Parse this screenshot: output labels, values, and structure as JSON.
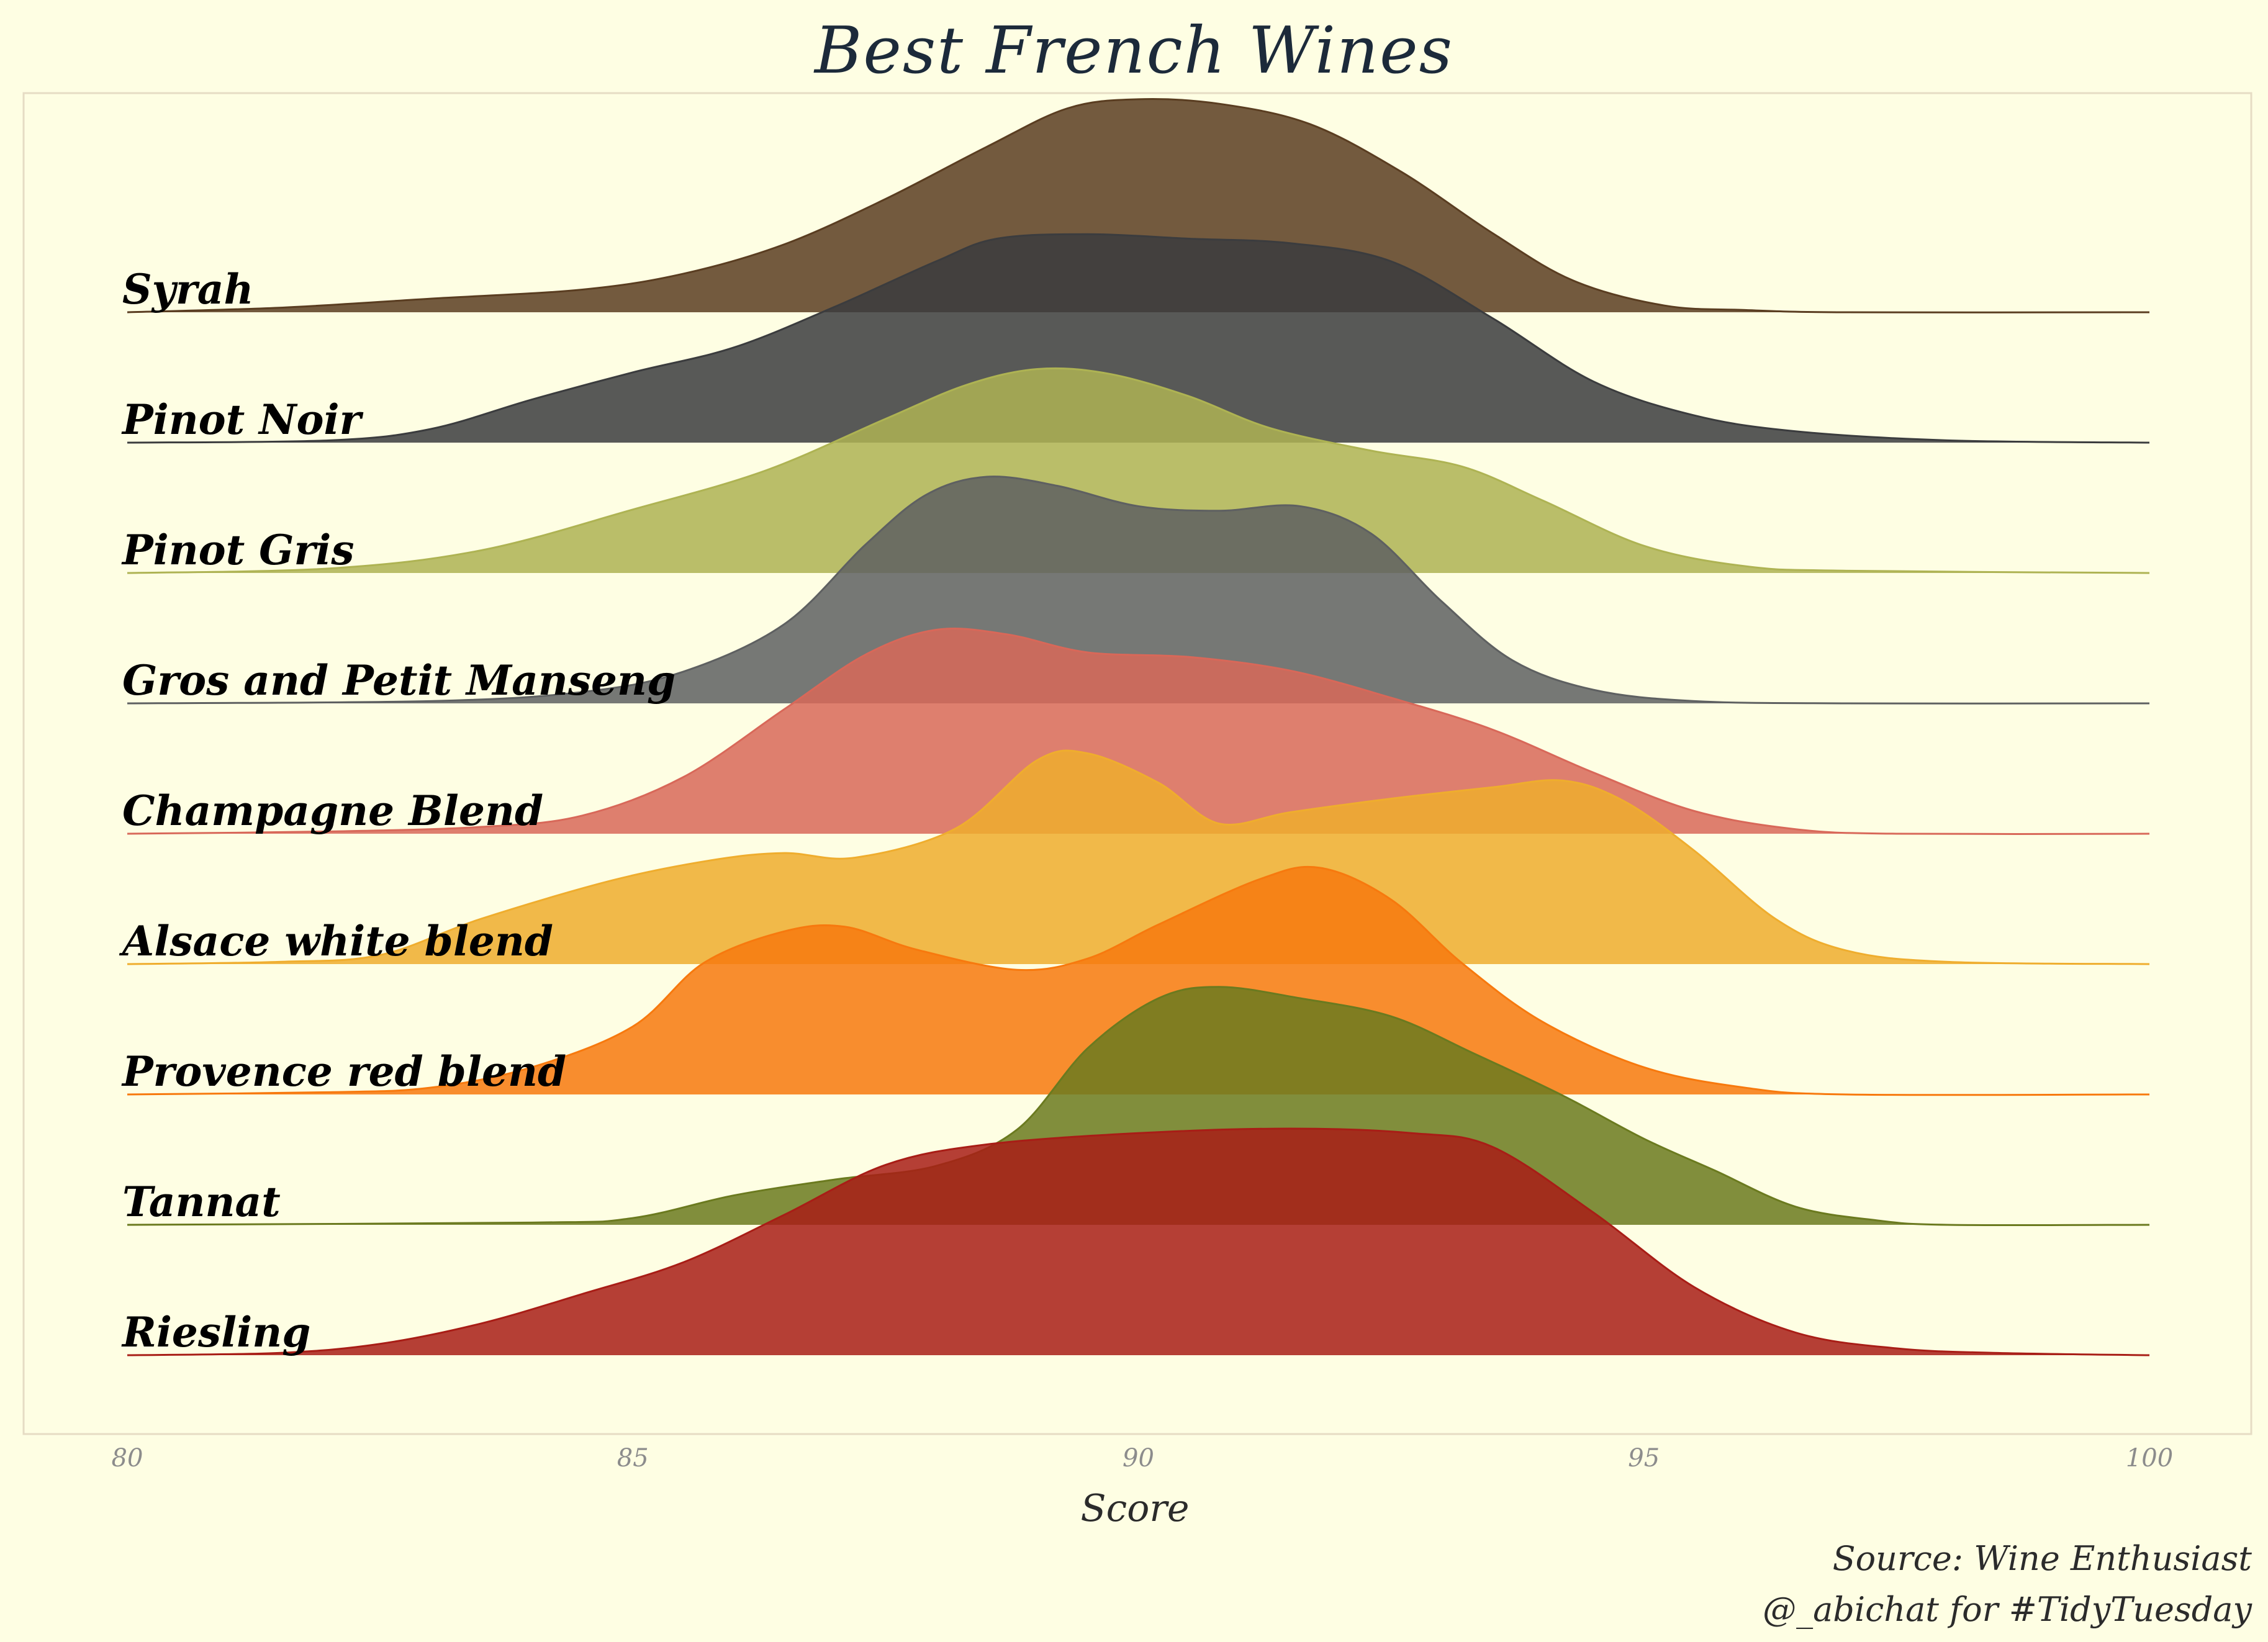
{
  "title": "Best French Wines",
  "caption": {
    "line1": "Source: Wine Enthusiast",
    "line2": "@_abichat for #TidyTuesday"
  },
  "chart_data": {
    "type": "area",
    "subtype": "ridgeline-density",
    "title": "Best French Wines",
    "xlabel": "Score",
    "ylabel": "",
    "xlim": [
      80,
      100
    ],
    "xticks": [
      80,
      85,
      90,
      95,
      100
    ],
    "grid": false,
    "legend": "none",
    "series": [
      {
        "name": "Syrah",
        "color": "#5a3d21",
        "points": [
          [
            80,
            0
          ],
          [
            81.5,
            0.02
          ],
          [
            83,
            0.06
          ],
          [
            84.5,
            0.1
          ],
          [
            85.5,
            0.17
          ],
          [
            86.5,
            0.3
          ],
          [
            87.5,
            0.5
          ],
          [
            88.5,
            0.73
          ],
          [
            89.3,
            0.9
          ],
          [
            90,
            0.94
          ],
          [
            90.8,
            0.92
          ],
          [
            91.7,
            0.83
          ],
          [
            92.6,
            0.62
          ],
          [
            93.5,
            0.35
          ],
          [
            94.3,
            0.14
          ],
          [
            95.2,
            0.03
          ],
          [
            96,
            0.01
          ],
          [
            97,
            0
          ],
          [
            100,
            0
          ]
        ]
      },
      {
        "name": "Pinot Noir",
        "color": "#3b3c3e",
        "points": [
          [
            80,
            0
          ],
          [
            82,
            0.01
          ],
          [
            83,
            0.06
          ],
          [
            84,
            0.19
          ],
          [
            85,
            0.31
          ],
          [
            86,
            0.42
          ],
          [
            87,
            0.6
          ],
          [
            88,
            0.8
          ],
          [
            88.6,
            0.9
          ],
          [
            89.5,
            0.92
          ],
          [
            90.5,
            0.9
          ],
          [
            91.5,
            0.88
          ],
          [
            92.5,
            0.8
          ],
          [
            93.5,
            0.55
          ],
          [
            94.5,
            0.27
          ],
          [
            95.5,
            0.12
          ],
          [
            96.5,
            0.05
          ],
          [
            98,
            0.01
          ],
          [
            100,
            0
          ]
        ]
      },
      {
        "name": "Pinot Gris",
        "color": "#aeb353",
        "points": [
          [
            80,
            0
          ],
          [
            82,
            0.02
          ],
          [
            83.5,
            0.1
          ],
          [
            85,
            0.28
          ],
          [
            86.3,
            0.45
          ],
          [
            87.5,
            0.68
          ],
          [
            88.3,
            0.83
          ],
          [
            89,
            0.9
          ],
          [
            89.7,
            0.88
          ],
          [
            90.5,
            0.78
          ],
          [
            91.3,
            0.64
          ],
          [
            92.3,
            0.54
          ],
          [
            93.2,
            0.47
          ],
          [
            94,
            0.32
          ],
          [
            95,
            0.12
          ],
          [
            96,
            0.03
          ],
          [
            97,
            0.01
          ],
          [
            100,
            0
          ]
        ]
      },
      {
        "name": "Gros and Petit Manseng",
        "color": "#5e6061",
        "points": [
          [
            80,
            0
          ],
          [
            83,
            0.01
          ],
          [
            84.5,
            0.05
          ],
          [
            85.5,
            0.14
          ],
          [
            86.5,
            0.35
          ],
          [
            87.3,
            0.7
          ],
          [
            87.9,
            0.92
          ],
          [
            88.5,
            1.0
          ],
          [
            89.2,
            0.96
          ],
          [
            90,
            0.87
          ],
          [
            90.8,
            0.85
          ],
          [
            91.6,
            0.87
          ],
          [
            92.3,
            0.75
          ],
          [
            93,
            0.45
          ],
          [
            93.7,
            0.19
          ],
          [
            94.5,
            0.06
          ],
          [
            95.5,
            0.01
          ],
          [
            97,
            0
          ],
          [
            100,
            0
          ]
        ]
      },
      {
        "name": "Champagne Blend",
        "color": "#d86859",
        "points": [
          [
            80,
            0
          ],
          [
            82,
            0.01
          ],
          [
            83.5,
            0.03
          ],
          [
            84.5,
            0.08
          ],
          [
            85.5,
            0.25
          ],
          [
            86.5,
            0.55
          ],
          [
            87.3,
            0.79
          ],
          [
            88,
            0.9
          ],
          [
            88.7,
            0.88
          ],
          [
            89.5,
            0.8
          ],
          [
            90.5,
            0.78
          ],
          [
            91.5,
            0.72
          ],
          [
            92.5,
            0.6
          ],
          [
            93.5,
            0.46
          ],
          [
            94.5,
            0.27
          ],
          [
            95.5,
            0.1
          ],
          [
            96.5,
            0.02
          ],
          [
            97.5,
            0
          ],
          [
            100,
            0
          ]
        ]
      },
      {
        "name": "Alsace white blend",
        "color": "#efad2e",
        "points": [
          [
            80,
            0
          ],
          [
            81.5,
            0.01
          ],
          [
            82.5,
            0.04
          ],
          [
            83.5,
            0.2
          ],
          [
            84.8,
            0.37
          ],
          [
            85.8,
            0.46
          ],
          [
            86.5,
            0.49
          ],
          [
            87.2,
            0.47
          ],
          [
            88.2,
            0.6
          ],
          [
            89,
            0.9
          ],
          [
            89.5,
            0.93
          ],
          [
            90.2,
            0.8
          ],
          [
            90.8,
            0.62
          ],
          [
            91.5,
            0.67
          ],
          [
            92.5,
            0.73
          ],
          [
            93.5,
            0.78
          ],
          [
            94.2,
            0.81
          ],
          [
            94.8,
            0.72
          ],
          [
            95.5,
            0.5
          ],
          [
            96.3,
            0.2
          ],
          [
            97,
            0.06
          ],
          [
            98,
            0.01
          ],
          [
            100,
            0
          ]
        ]
      },
      {
        "name": "Provence red blend",
        "color": "#f7790e",
        "points": [
          [
            80,
            0
          ],
          [
            82,
            0.01
          ],
          [
            83,
            0.03
          ],
          [
            84,
            0.12
          ],
          [
            85,
            0.3
          ],
          [
            85.7,
            0.58
          ],
          [
            86.5,
            0.72
          ],
          [
            87.1,
            0.74
          ],
          [
            87.8,
            0.64
          ],
          [
            88.8,
            0.55
          ],
          [
            89.5,
            0.6
          ],
          [
            90.2,
            0.75
          ],
          [
            91.2,
            0.95
          ],
          [
            91.8,
            1.0
          ],
          [
            92.5,
            0.86
          ],
          [
            93.2,
            0.58
          ],
          [
            94,
            0.32
          ],
          [
            95,
            0.12
          ],
          [
            96,
            0.03
          ],
          [
            97,
            0
          ],
          [
            100,
            0
          ]
        ]
      },
      {
        "name": "Tannat",
        "color": "#6b7a1f",
        "points": [
          [
            80,
            0
          ],
          [
            84,
            0.01
          ],
          [
            85,
            0.03
          ],
          [
            86,
            0.13
          ],
          [
            87,
            0.2
          ],
          [
            88,
            0.26
          ],
          [
            88.8,
            0.42
          ],
          [
            89.5,
            0.78
          ],
          [
            90.2,
            1.0
          ],
          [
            90.8,
            1.05
          ],
          [
            91.6,
            1.0
          ],
          [
            92.5,
            0.92
          ],
          [
            93.3,
            0.76
          ],
          [
            94.2,
            0.57
          ],
          [
            95,
            0.38
          ],
          [
            95.7,
            0.24
          ],
          [
            96.5,
            0.08
          ],
          [
            97.3,
            0.02
          ],
          [
            98,
            0
          ],
          [
            100,
            0
          ]
        ]
      },
      {
        "name": "Riesling",
        "color": "#a81d16",
        "points": [
          [
            80,
            0
          ],
          [
            81.5,
            0.01
          ],
          [
            82.5,
            0.05
          ],
          [
            83.5,
            0.14
          ],
          [
            84.5,
            0.27
          ],
          [
            85.5,
            0.41
          ],
          [
            86.5,
            0.62
          ],
          [
            87.5,
            0.84
          ],
          [
            88.5,
            0.93
          ],
          [
            90,
            0.98
          ],
          [
            91.5,
            1.0
          ],
          [
            92.7,
            0.98
          ],
          [
            93.5,
            0.92
          ],
          [
            94.5,
            0.63
          ],
          [
            95.5,
            0.3
          ],
          [
            96.5,
            0.1
          ],
          [
            97.5,
            0.03
          ],
          [
            98.5,
            0.01
          ],
          [
            100,
            0
          ]
        ]
      }
    ]
  }
}
